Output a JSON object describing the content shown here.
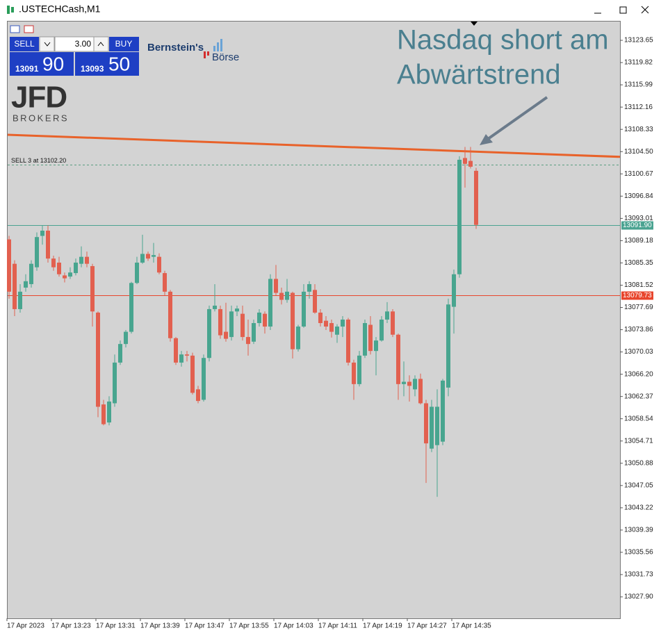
{
  "window": {
    "title": ".USTECHCash,M1"
  },
  "trade_panel": {
    "sell_button": "SELL",
    "volume": "3.00",
    "buy_button": "BUY",
    "bid_big": "13091",
    "bid_small": "90",
    "ask_big": "13093",
    "ask_small": "50"
  },
  "logos": {
    "bernstein_top": "Bernstein's",
    "bernstein_bottom": "Börse",
    "jfd": "JFD",
    "jfd_sub": "BROKERS"
  },
  "chart_data": {
    "type": "candlestick",
    "annotation": [
      "Nasdaq short am",
      "Abwärtstrend"
    ],
    "categories": [
      "17 Apr 2023",
      null,
      null,
      null,
      null,
      null,
      null,
      null,
      "17 Apr 13:23",
      null,
      null,
      null,
      null,
      null,
      null,
      null,
      "17 Apr 13:31",
      null,
      null,
      null,
      null,
      null,
      null,
      null,
      "17 Apr 13:39",
      null,
      null,
      null,
      null,
      null,
      null,
      null,
      "17 Apr 13:47",
      null,
      null,
      null,
      null,
      null,
      null,
      null,
      "17 Apr 13:55",
      null,
      null,
      null,
      null,
      null,
      null,
      null,
      "17 Apr 14:03",
      null,
      null,
      null,
      null,
      null,
      null,
      null,
      "17 Apr 14:11",
      null,
      null,
      null,
      null,
      null,
      null,
      null,
      "17 Apr 14:19",
      null,
      null,
      null,
      null,
      null,
      null,
      null,
      "17 Apr 14:27",
      null,
      null,
      null,
      null,
      null,
      null,
      null,
      "17 Apr 14:35",
      null,
      null,
      null,
      null
    ],
    "open": [
      13089.4,
      13085.2,
      13077.4,
      13081.1,
      13081.7,
      13084.6,
      13090.0,
      13090.9,
      13086.1,
      13085.4,
      13083.2,
      13083.0,
      13083.6,
      13085.2,
      13086.4,
      13084.8,
      13076.8,
      13061.0,
      13057.9,
      13061.2,
      13068.2,
      13071.4,
      13073.5,
      13081.9,
      13085.4,
      13086.9,
      13086.4,
      13086.4,
      13083.6,
      13080.4,
      13072.4,
      13068.2,
      13069.6,
      13069.4,
      13063.6,
      13061.8,
      13069.0,
      13077.4,
      13077.4,
      13073.5,
      13072.6,
      13077.0,
      13076.6,
      13072.6,
      13071.8,
      13075.0,
      13076.6,
      13074.4,
      13082.6,
      13080.2,
      13079.0,
      13080.2,
      13070.5,
      13074.4,
      13080.4,
      13080.7,
      13076.8,
      13075.4,
      13075.0,
      13073.0,
      13074.4,
      13075.6,
      13068.2,
      13064.5,
      13069.4,
      13074.7,
      13070.2,
      13072.0,
      13075.6,
      13077.0,
      13073.0,
      13064.5,
      13064.9,
      13063.6,
      13065.4,
      13061.2,
      13053.4,
      13054.0,
      13054.6,
      13063.9,
      13077.8,
      13083.4,
      13103.4,
      13102.9,
      13101.2
    ],
    "high": [
      13090.0,
      13085.8,
      13081.7,
      13083.4,
      13085.8,
      13090.6,
      13091.8,
      13091.8,
      13086.6,
      13086.4,
      13083.7,
      13084.6,
      13086.1,
      13088.2,
      13087.3,
      13085.2,
      13077.0,
      13061.8,
      13062.4,
      13069.6,
      13072.0,
      13073.8,
      13082.1,
      13086.4,
      13090.2,
      13087.3,
      13088.8,
      13087.0,
      13084.0,
      13080.7,
      13072.6,
      13070.2,
      13070.2,
      13069.9,
      13064.2,
      13069.6,
      13078.0,
      13081.7,
      13078.0,
      13078.5,
      13078.0,
      13078.0,
      13078.0,
      13075.6,
      13075.6,
      13077.4,
      13077.0,
      13083.4,
      13085.0,
      13081.1,
      13082.6,
      13080.4,
      13074.7,
      13081.7,
      13082.2,
      13081.7,
      13077.4,
      13076.2,
      13075.6,
      13074.8,
      13076.2,
      13075.9,
      13068.7,
      13070.2,
      13075.6,
      13076.2,
      13072.6,
      13076.2,
      13078.6,
      13077.4,
      13073.2,
      13068.4,
      13066.0,
      13066.0,
      13066.3,
      13061.8,
      13061.8,
      13063.6,
      13065.4,
      13079.2,
      13084.2,
      13103.7,
      13105.3,
      13105.3,
      13101.7
    ],
    "low": [
      13079.2,
      13076.2,
      13076.8,
      13080.4,
      13081.1,
      13084.0,
      13088.5,
      13085.4,
      13084.0,
      13083.0,
      13082.0,
      13082.6,
      13083.2,
      13084.6,
      13084.6,
      13074.4,
      13058.8,
      13057.4,
      13057.4,
      13060.6,
      13067.8,
      13070.8,
      13073.2,
      13081.7,
      13085.2,
      13085.7,
      13085.4,
      13083.4,
      13079.8,
      13071.8,
      13067.8,
      13067.5,
      13068.4,
      13062.7,
      13061.2,
      13061.5,
      13068.4,
      13077.0,
      13072.3,
      13071.8,
      13072.0,
      13076.2,
      13072.0,
      13069.4,
      13071.4,
      13074.4,
      13073.2,
      13073.8,
      13079.8,
      13078.2,
      13078.5,
      13068.9,
      13070.1,
      13074.2,
      13079.2,
      13076.6,
      13074.4,
      13073.8,
      13072.5,
      13071.6,
      13072.6,
      13067.7,
      13061.8,
      13064.1,
      13069.0,
      13069.6,
      13066.0,
      13071.8,
      13075.0,
      13072.6,
      13061.8,
      13062.4,
      13061.5,
      13062.4,
      13061.0,
      13047.5,
      13052.8,
      13045.1,
      13054.0,
      13062.4,
      13073.2,
      13082.8,
      13098.3,
      13101.6,
      13091.2
    ],
    "close": [
      13080.4,
      13077.4,
      13080.4,
      13082.2,
      13085.2,
      13089.8,
      13090.9,
      13086.1,
      13084.6,
      13083.4,
      13082.7,
      13083.7,
      13085.4,
      13086.4,
      13085.2,
      13077.0,
      13060.6,
      13057.6,
      13061.5,
      13068.2,
      13071.4,
      13073.5,
      13081.9,
      13085.4,
      13086.9,
      13086.1,
      13086.7,
      13083.7,
      13080.4,
      13072.4,
      13068.2,
      13069.6,
      13069.4,
      13063.0,
      13061.6,
      13069.0,
      13077.4,
      13078.0,
      13072.9,
      13072.3,
      13077.0,
      13077.5,
      13072.6,
      13071.4,
      13075.0,
      13076.8,
      13074.4,
      13082.6,
      13080.2,
      13079.0,
      13080.4,
      13070.5,
      13074.4,
      13080.4,
      13081.7,
      13076.8,
      13075.0,
      13074.4,
      13073.5,
      13074.4,
      13075.6,
      13068.2,
      13064.5,
      13069.4,
      13075.0,
      13070.2,
      13072.0,
      13075.6,
      13077.0,
      13073.0,
      13064.5,
      13064.9,
      13064.2,
      13065.4,
      13061.2,
      13054.3,
      13060.6,
      13060.6,
      13065.1,
      13078.2,
      13083.4,
      13103.1,
      13102.4,
      13101.9,
      13091.9
    ],
    "up_color": "#48a58f",
    "down_color": "#e2604f",
    "ylim": [
      13024.2,
      13127.0
    ],
    "yticks": [
      13123.65,
      13119.82,
      13115.99,
      13112.16,
      13108.33,
      {
        "value": 13104.5,
        "label": "13104.50"
      },
      13100.67,
      13096.84,
      13093.01,
      13089.18,
      13085.35,
      13081.52,
      13077.69,
      13073.86,
      13070.03,
      {
        "value": 13066.2,
        "label": "13066.20"
      },
      13062.37,
      13058.54,
      13054.71,
      13050.88,
      13047.05,
      13043.22,
      13039.39,
      13035.56,
      13031.73,
      {
        "value": 13027.9,
        "label": "13027.90"
      }
    ],
    "grid": false,
    "price_lines": [
      {
        "value": 13102.2,
        "label": "SELL 3 at 13102.20",
        "style": "dashed",
        "label_side": "left",
        "color": "#5a9e80"
      },
      {
        "value": 13091.9,
        "label": "13091.90",
        "style": "solid",
        "label_side": "right",
        "color": "#4aa391"
      },
      {
        "value": 13079.73,
        "label": "13079.73",
        "style": "solid",
        "label_side": "right",
        "color": "#e8452c"
      }
    ],
    "trendline": {
      "values": [
        13107.4,
        13103.6
      ],
      "color": "#e8622a"
    }
  }
}
